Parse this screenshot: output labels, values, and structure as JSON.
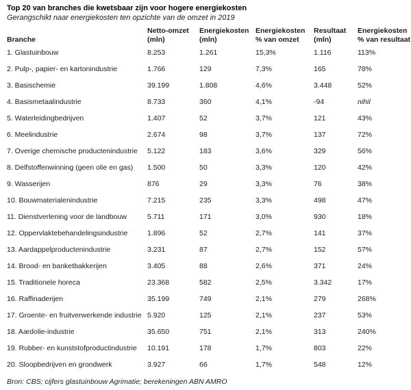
{
  "title": "Top 20 van branches die kwetsbaar zijn voor hogere energiekosten",
  "subtitle": "Gerangschikt naar energiekosten ten opzichte van de omzet in 2019",
  "source": "Bron: CBS; cijfers glastuinbouw Agrimatie; berekeningen ABN AMRO",
  "text_color": "#1c1c1c",
  "background_color": "#ffffff",
  "chart_data": {
    "type": "table",
    "title": "Top 20 van branches die kwetsbaar zijn voor hogere energiekosten",
    "subtitle": "Gerangschikt naar energiekosten ten opzichte van de omzet in 2019",
    "columns": [
      {
        "lines": [
          "Branche"
        ]
      },
      {
        "lines": [
          "Netto-omzet",
          "(mln)"
        ]
      },
      {
        "lines": [
          "Energiekosten",
          "(mln)"
        ]
      },
      {
        "lines": [
          "Energiekosten",
          "% van omzet"
        ]
      },
      {
        "lines": [
          "Resultaat",
          "(mln)"
        ]
      },
      {
        "lines": [
          "Energiekosten",
          "% van resultaat"
        ]
      }
    ],
    "italic_values": [
      "nihil"
    ],
    "rows": [
      [
        "1. Glastuinbouw",
        "8.253",
        "1.261",
        "15,3%",
        "1.116",
        "113%"
      ],
      [
        "2. Pulp-, papier- en kartonindustrie",
        "1.766",
        "129",
        "7,3%",
        "165",
        "78%"
      ],
      [
        "3. Basischemie",
        "39.199",
        "1.808",
        "4,6%",
        "3.448",
        "52%"
      ],
      [
        "4. Basismetaalindustrie",
        "8.733",
        "360",
        "4,1%",
        "-94",
        "nihil"
      ],
      [
        "5. Waterleidingbedrijven",
        "1.407",
        "52",
        "3,7%",
        "121",
        "43%"
      ],
      [
        "6. Meelindustrie",
        "2.674",
        "98",
        "3,7%",
        "137",
        "72%"
      ],
      [
        "7. Overige chemische productenindustrie",
        "5.122",
        "183",
        "3,6%",
        "329",
        "56%"
      ],
      [
        "8. Delfstoffenwinning (geen olie en gas)",
        "1.500",
        "50",
        "3,3%",
        "120",
        "42%"
      ],
      [
        "9. Wasserijen",
        "876",
        "29",
        "3,3%",
        "76",
        "38%"
      ],
      [
        "10. Bouwmaterialenindustrie",
        "7.215",
        "235",
        "3,3%",
        "498",
        "47%"
      ],
      [
        "11. Dienstverlening voor de landbouw",
        "5.711",
        "171",
        "3,0%",
        "930",
        "18%"
      ],
      [
        "12. Oppervlaktebehandelingsindustrie",
        "1.896",
        "52",
        "2,7%",
        "141",
        "37%"
      ],
      [
        "13. Aardappelproductenindustrie",
        "3.231",
        "87",
        "2,7%",
        "152",
        "57%"
      ],
      [
        "14. Brood- en banketbakkerijen",
        "3.405",
        "88",
        "2,6%",
        "371",
        "24%"
      ],
      [
        "15. Traditionele horeca",
        "23.368",
        "582",
        "2,5%",
        "3.342",
        "17%"
      ],
      [
        "16. Raffinaderijen",
        "35.199",
        "749",
        "2,1%",
        "279",
        "268%"
      ],
      [
        "17. Groente- en fruitverwerkende industrie",
        "5.920",
        "125",
        "2,1%",
        "237",
        "53%"
      ],
      [
        "18. Aardolie-industrie",
        "35.650",
        "751",
        "2,1%",
        "313",
        "240%"
      ],
      [
        "19. Rubber- en kunststofproductindustrie",
        "10.191",
        "178",
        "1,7%",
        "803",
        "22%"
      ],
      [
        "20. Sloopbedrijven en grondwerk",
        "3.927",
        "66",
        "1,7%",
        "548",
        "12%"
      ]
    ]
  }
}
